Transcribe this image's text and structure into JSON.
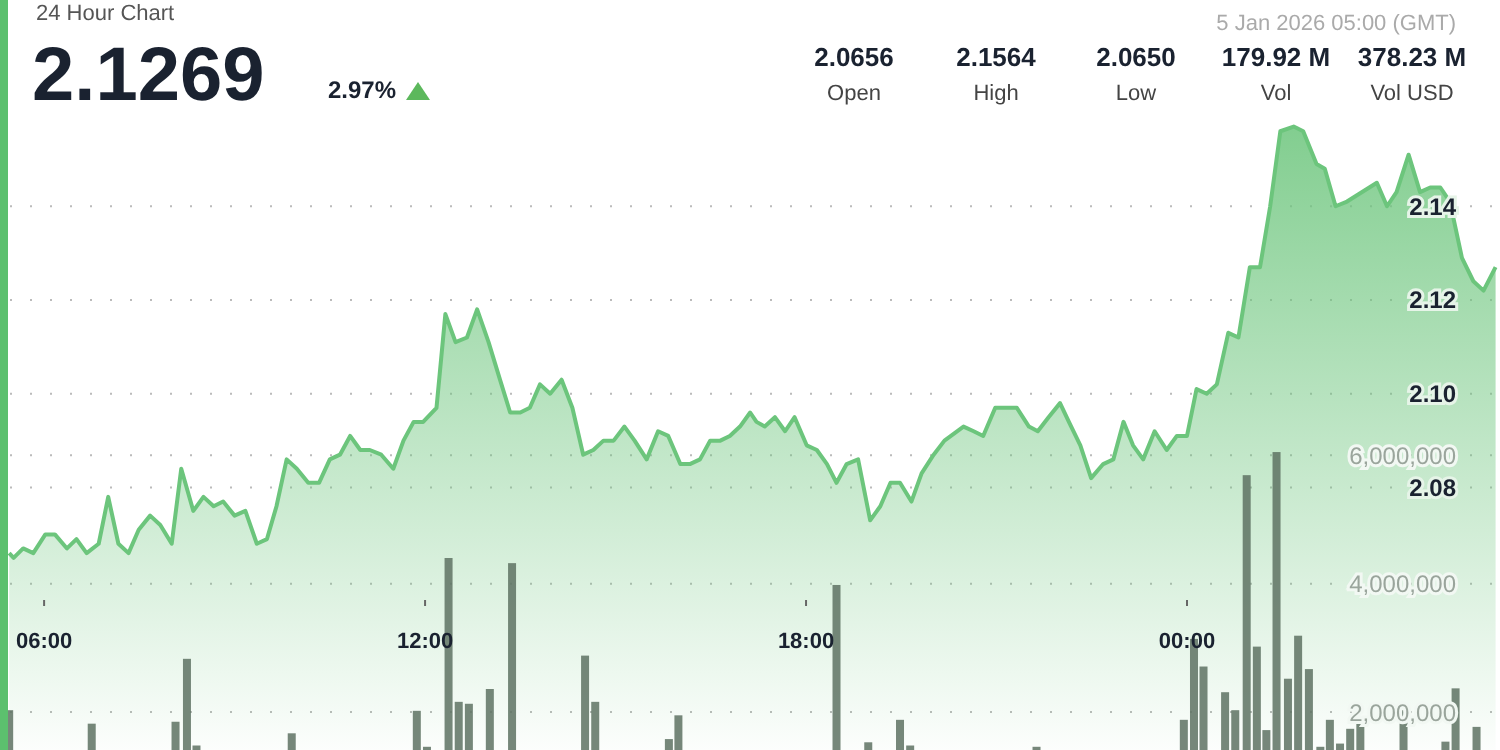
{
  "chart_data": {
    "type": "area",
    "title": "24 Hour Chart",
    "annotations": [
      "2.1269",
      "2.97%",
      "5 Jan 2026 05:00 (GMT)",
      "2.0656",
      "Open",
      "2.1564",
      "High",
      "2.0650",
      "Low",
      "179.92 M",
      "Vol",
      "378.23 M",
      "Vol USD"
    ],
    "xlim": [
      5.4,
      28.92
    ],
    "xticks": [
      {
        "value": 6,
        "label": "06:00"
      },
      {
        "value": 12,
        "label": "12:00"
      },
      {
        "value": 18,
        "label": "18:00"
      },
      {
        "value": 24,
        "label": "00:00"
      }
    ],
    "ylim": [
      2.024,
      2.184
    ],
    "yticks": [
      2.08,
      {
        "value": 2.1,
        "label": "2.10"
      },
      2.12,
      2.14
    ],
    "y2lim": [
      1410000,
      13090000
    ],
    "y2ticks": [
      {
        "value": 2000000,
        "label": "2,000,000"
      },
      {
        "value": 4000000,
        "label": "4,000,000"
      },
      {
        "value": 6000000,
        "label": "6,000,000"
      }
    ],
    "grid": "y",
    "series": [
      {
        "type": "bar",
        "axis": "y2",
        "color": "#5e7263",
        "x": [
          5.45,
          6.75,
          8.07,
          8.25,
          8.4,
          9.9,
          11.87,
          12.03,
          12.37,
          12.53,
          12.69,
          13.02,
          13.37,
          14.52,
          14.68,
          15.84,
          15.99,
          18.48,
          18.98,
          19.48,
          19.64,
          21.63,
          23.95,
          24.11,
          24.26,
          24.6,
          24.76,
          24.94,
          25.1,
          25.25,
          25.41,
          25.59,
          25.75,
          25.92,
          26.1,
          26.25,
          26.41,
          26.57,
          26.73,
          27.41,
          28.07,
          28.23,
          28.56
        ],
        "values": [
          2030000,
          1820000,
          1850000,
          2830000,
          1480000,
          1670000,
          2020000,
          1460000,
          4400000,
          2160000,
          2130000,
          2360000,
          4320000,
          2880000,
          2160000,
          1580000,
          1950000,
          3980000,
          1530000,
          1880000,
          1480000,
          1460000,
          1880000,
          3140000,
          2710000,
          2310000,
          2030000,
          5690000,
          3020000,
          1720000,
          6050000,
          2520000,
          3190000,
          2670000,
          1460000,
          1880000,
          1510000,
          1740000,
          1880000,
          2030000,
          1540000,
          2370000,
          1770000
        ]
      },
      {
        "color": "#6cc57c",
        "x": [
          5.45,
          5.52,
          5.67,
          5.83,
          6.02,
          6.17,
          6.36,
          6.51,
          6.67,
          6.86,
          7.01,
          7.17,
          7.33,
          7.49,
          7.67,
          7.83,
          8.01,
          8.16,
          8.35,
          8.51,
          8.67,
          8.82,
          9.0,
          9.17,
          9.35,
          9.51,
          9.66,
          9.82,
          9.98,
          10.16,
          10.33,
          10.5,
          10.66,
          10.82,
          10.98,
          11.13,
          11.31,
          11.5,
          11.66,
          11.82,
          11.97,
          12.18,
          12.32,
          12.48,
          12.66,
          12.82,
          13.0,
          13.18,
          13.34,
          13.5,
          13.65,
          13.81,
          13.97,
          14.15,
          14.32,
          14.49,
          14.65,
          14.81,
          14.97,
          15.14,
          15.3,
          15.49,
          15.67,
          15.83,
          16.02,
          16.17,
          16.33,
          16.49,
          16.65,
          16.8,
          16.96,
          17.12,
          17.22,
          17.35,
          17.51,
          17.67,
          17.82,
          18.01,
          18.17,
          18.33,
          18.48,
          18.64,
          18.82,
          19.01,
          19.17,
          19.33,
          19.48,
          19.66,
          19.82,
          20.01,
          20.18,
          20.48,
          20.64,
          20.79,
          20.98,
          21.32,
          21.51,
          21.65,
          21.82,
          22.0,
          22.14,
          22.32,
          22.49,
          22.68,
          22.84,
          23.0,
          23.15,
          23.31,
          23.49,
          23.68,
          23.84,
          24.0,
          24.15,
          24.31,
          24.47,
          24.65,
          24.81,
          24.99,
          25.15,
          25.31,
          25.47,
          25.68,
          25.83,
          26.04,
          26.17,
          26.34,
          26.52,
          26.99,
          27.15,
          27.3,
          27.49,
          27.67,
          27.83,
          27.99,
          28.14,
          28.33,
          28.51,
          28.67,
          28.86
        ],
        "values": [
          2.066,
          2.065,
          2.067,
          2.066,
          2.07,
          2.07,
          2.067,
          2.069,
          2.066,
          2.068,
          2.078,
          2.068,
          2.066,
          2.071,
          2.074,
          2.072,
          2.068,
          2.084,
          2.075,
          2.078,
          2.076,
          2.077,
          2.074,
          2.075,
          2.068,
          2.069,
          2.076,
          2.086,
          2.084,
          2.081,
          2.081,
          2.086,
          2.087,
          2.091,
          2.088,
          2.088,
          2.087,
          2.084,
          2.09,
          2.094,
          2.094,
          2.097,
          2.117,
          2.111,
          2.112,
          2.118,
          2.111,
          2.103,
          2.096,
          2.096,
          2.097,
          2.102,
          2.1,
          2.103,
          2.097,
          2.087,
          2.088,
          2.09,
          2.09,
          2.093,
          2.09,
          2.086,
          2.092,
          2.091,
          2.085,
          2.085,
          2.086,
          2.09,
          2.09,
          2.091,
          2.093,
          2.096,
          2.094,
          2.093,
          2.095,
          2.092,
          2.095,
          2.089,
          2.088,
          2.085,
          2.081,
          2.085,
          2.086,
          2.073,
          2.076,
          2.081,
          2.081,
          2.077,
          2.083,
          2.087,
          2.09,
          2.093,
          2.092,
          2.091,
          2.097,
          2.097,
          2.093,
          2.092,
          2.095,
          2.098,
          2.094,
          2.089,
          2.082,
          2.085,
          2.086,
          2.094,
          2.089,
          2.086,
          2.092,
          2.088,
          2.091,
          2.091,
          2.101,
          2.1,
          2.102,
          2.113,
          2.112,
          2.127,
          2.127,
          2.14,
          2.156,
          2.157,
          2.156,
          2.149,
          2.148,
          2.14,
          2.141,
          2.145,
          2.14,
          2.143,
          2.151,
          2.143,
          2.144,
          2.144,
          2.141,
          2.129,
          2.124,
          2.122,
          2.127
        ]
      }
    ]
  }
}
